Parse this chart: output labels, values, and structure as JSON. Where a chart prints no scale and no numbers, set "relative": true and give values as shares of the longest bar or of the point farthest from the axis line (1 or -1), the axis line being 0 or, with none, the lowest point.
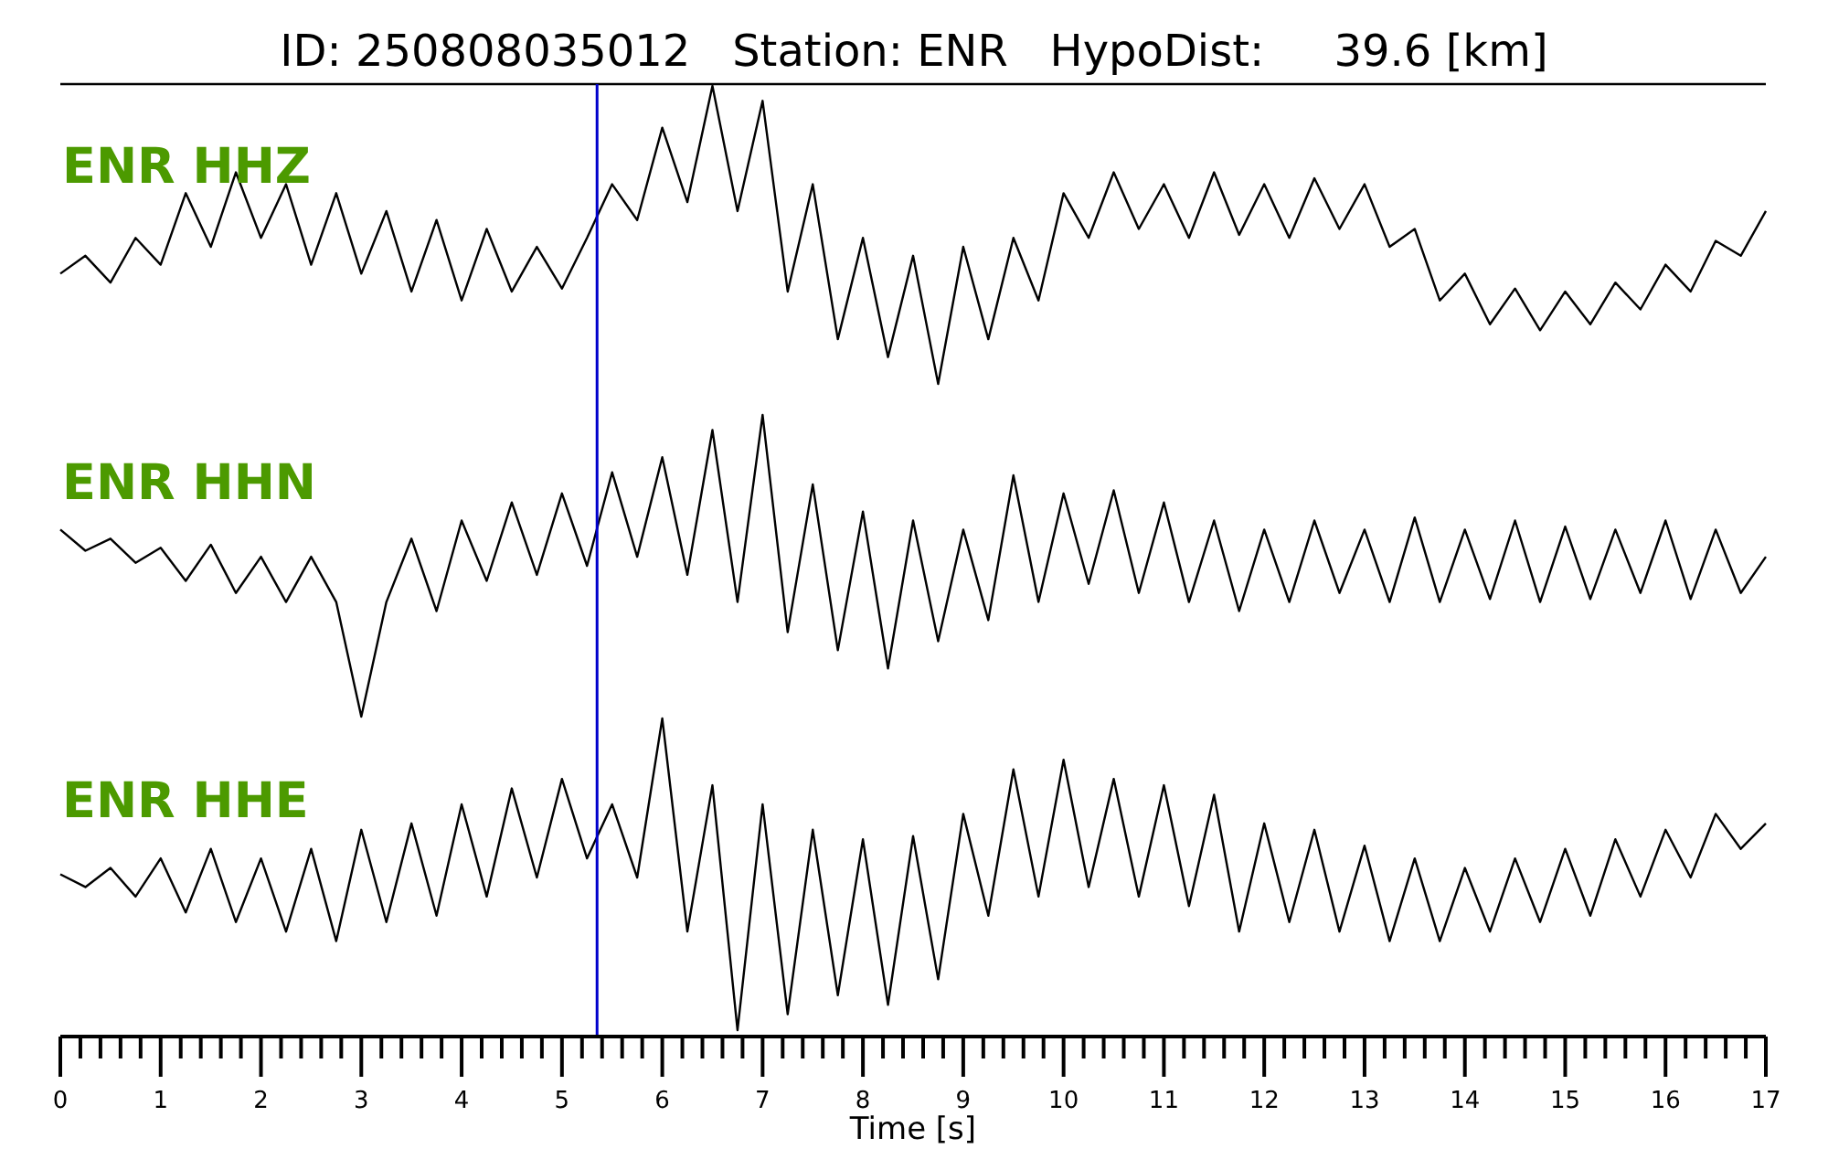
{
  "chart_data": [
    {
      "type": "line",
      "title": "ID: 250808035012   Station: ENR   HypoDist:     39.6 [km]",
      "relative": true,
      "tick_labels": false,
      "xlim": [
        0,
        17
      ],
      "x": [
        0,
        0.25,
        0.5,
        0.75,
        1,
        1.25,
        1.5,
        1.75,
        2,
        2.25,
        2.5,
        2.75,
        3,
        3.25,
        3.5,
        3.75,
        4,
        4.25,
        4.5,
        4.75,
        5,
        5.25,
        5.5,
        5.75,
        6,
        6.25,
        6.5,
        6.75,
        7,
        7.25,
        7.5,
        7.75,
        8,
        8.25,
        8.5,
        8.75,
        9,
        9.25,
        9.5,
        9.75,
        10,
        10.25,
        10.5,
        10.75,
        11,
        11.25,
        11.5,
        11.75,
        12,
        12.25,
        12.5,
        12.75,
        13,
        13.25,
        13.5,
        13.75,
        14,
        14.25,
        14.5,
        14.75,
        15,
        15.25,
        15.5,
        15.75,
        16,
        16.25,
        16.5,
        16.75,
        17
      ],
      "series": [
        {
          "name": "ENR HHZ",
          "color": "#000000",
          "values": [
            0.37,
            0.43,
            0.34,
            0.49,
            0.4,
            0.64,
            0.46,
            0.71,
            0.49,
            0.67,
            0.4,
            0.64,
            0.37,
            0.58,
            0.31,
            0.55,
            0.28,
            0.52,
            0.31,
            0.46,
            0.32,
            0.49,
            0.67,
            0.55,
            0.86,
            0.61,
            1,
            0.58,
            0.95,
            0.31,
            0.67,
            0.15,
            0.49,
            0.09,
            0.43,
            0,
            0.46,
            0.15,
            0.49,
            0.28,
            0.64,
            0.49,
            0.71,
            0.52,
            0.67,
            0.49,
            0.71,
            0.5,
            0.67,
            0.49,
            0.69,
            0.52,
            0.67,
            0.46,
            0.52,
            0.28,
            0.37,
            0.2,
            0.32,
            0.18,
            0.31,
            0.2,
            0.34,
            0.25,
            0.4,
            0.31,
            0.48,
            0.43,
            0.58
          ]
        }
      ],
      "ref_lines": [
        {
          "axis": "x",
          "value": 5.35,
          "color": "#0000cc"
        }
      ]
    },
    {
      "type": "line",
      "relative": true,
      "tick_labels": false,
      "xlim": [
        0,
        17
      ],
      "x": [
        0,
        0.25,
        0.5,
        0.75,
        1,
        1.25,
        1.5,
        1.75,
        2,
        2.25,
        2.5,
        2.75,
        3,
        3.25,
        3.5,
        3.75,
        4,
        4.25,
        4.5,
        4.75,
        5,
        5.25,
        5.5,
        5.75,
        6,
        6.25,
        6.5,
        6.75,
        7,
        7.25,
        7.5,
        7.75,
        8,
        8.25,
        8.5,
        8.75,
        9,
        9.25,
        9.5,
        9.75,
        10,
        10.25,
        10.5,
        10.75,
        11,
        11.25,
        11.5,
        11.75,
        12,
        12.25,
        12.5,
        12.75,
        13,
        13.25,
        13.5,
        13.75,
        14,
        14.25,
        14.5,
        14.75,
        15,
        15.25,
        15.5,
        15.75,
        16,
        16.25,
        16.5,
        16.75,
        17
      ],
      "series": [
        {
          "name": "ENR HHN",
          "color": "#000000",
          "values": [
            0.62,
            0.55,
            0.59,
            0.51,
            0.56,
            0.45,
            0.57,
            0.41,
            0.53,
            0.38,
            0.53,
            0.38,
            0,
            0.38,
            0.59,
            0.35,
            0.65,
            0.45,
            0.71,
            0.47,
            0.74,
            0.5,
            0.81,
            0.53,
            0.86,
            0.47,
            0.95,
            0.38,
            1,
            0.28,
            0.77,
            0.22,
            0.68,
            0.16,
            0.65,
            0.25,
            0.62,
            0.32,
            0.8,
            0.38,
            0.74,
            0.44,
            0.75,
            0.41,
            0.71,
            0.38,
            0.65,
            0.35,
            0.62,
            0.38,
            0.65,
            0.41,
            0.62,
            0.38,
            0.66,
            0.38,
            0.62,
            0.39,
            0.65,
            0.38,
            0.63,
            0.39,
            0.62,
            0.41,
            0.65,
            0.39,
            0.62,
            0.41,
            0.53
          ]
        }
      ],
      "ref_lines": [
        {
          "axis": "x",
          "value": 5.35,
          "color": "#0000cc"
        }
      ]
    },
    {
      "type": "line",
      "relative": true,
      "tick_labels": "x",
      "xlim": [
        0,
        17
      ],
      "xlabel": "Time [s]",
      "xticks": [
        0,
        {
          "value": 0.2,
          "label": null
        },
        {
          "value": 0.4,
          "label": null
        },
        {
          "value": 0.6,
          "label": null
        },
        {
          "value": 0.8,
          "label": null
        },
        1,
        {
          "value": 1.2,
          "label": null
        },
        {
          "value": 1.4,
          "label": null
        },
        {
          "value": 1.6,
          "label": null
        },
        {
          "value": 1.8,
          "label": null
        },
        2,
        {
          "value": 2.2,
          "label": null
        },
        {
          "value": 2.4,
          "label": null
        },
        {
          "value": 2.6,
          "label": null
        },
        {
          "value": 2.8,
          "label": null
        },
        3,
        {
          "value": 3.2,
          "label": null
        },
        {
          "value": 3.4,
          "label": null
        },
        {
          "value": 3.6,
          "label": null
        },
        {
          "value": 3.8,
          "label": null
        },
        4,
        {
          "value": 4.2,
          "label": null
        },
        {
          "value": 4.4,
          "label": null
        },
        {
          "value": 4.6,
          "label": null
        },
        {
          "value": 4.8,
          "label": null
        },
        5,
        {
          "value": 5.2,
          "label": null
        },
        {
          "value": 5.4,
          "label": null
        },
        {
          "value": 5.6,
          "label": null
        },
        {
          "value": 5.8,
          "label": null
        },
        6,
        {
          "value": 6.2,
          "label": null
        },
        {
          "value": 6.4,
          "label": null
        },
        {
          "value": 6.6,
          "label": null
        },
        {
          "value": 6.8,
          "label": null
        },
        7,
        {
          "value": 7.2,
          "label": null
        },
        {
          "value": 7.4,
          "label": null
        },
        {
          "value": 7.6,
          "label": null
        },
        {
          "value": 7.8,
          "label": null
        },
        8,
        {
          "value": 8.2,
          "label": null
        },
        {
          "value": 8.4,
          "label": null
        },
        {
          "value": 8.6,
          "label": null
        },
        {
          "value": 8.8,
          "label": null
        },
        9,
        {
          "value": 9.2,
          "label": null
        },
        {
          "value": 9.4,
          "label": null
        },
        {
          "value": 9.6,
          "label": null
        },
        {
          "value": 9.8,
          "label": null
        },
        10,
        {
          "value": 10.2,
          "label": null
        },
        {
          "value": 10.4,
          "label": null
        },
        {
          "value": 10.6,
          "label": null
        },
        {
          "value": 10.8,
          "label": null
        },
        11,
        {
          "value": 11.2,
          "label": null
        },
        {
          "value": 11.4,
          "label": null
        },
        {
          "value": 11.6,
          "label": null
        },
        {
          "value": 11.8,
          "label": null
        },
        12,
        {
          "value": 12.2,
          "label": null
        },
        {
          "value": 12.4,
          "label": null
        },
        {
          "value": 12.6,
          "label": null
        },
        {
          "value": 12.8,
          "label": null
        },
        13,
        {
          "value": 13.2,
          "label": null
        },
        {
          "value": 13.4,
          "label": null
        },
        {
          "value": 13.6,
          "label": null
        },
        {
          "value": 13.8,
          "label": null
        },
        14,
        {
          "value": 14.2,
          "label": null
        },
        {
          "value": 14.4,
          "label": null
        },
        {
          "value": 14.6,
          "label": null
        },
        {
          "value": 14.8,
          "label": null
        },
        15,
        {
          "value": 15.2,
          "label": null
        },
        {
          "value": 15.4,
          "label": null
        },
        {
          "value": 15.6,
          "label": null
        },
        {
          "value": 15.8,
          "label": null
        },
        16,
        {
          "value": 16.2,
          "label": null
        },
        {
          "value": 16.4,
          "label": null
        },
        {
          "value": 16.6,
          "label": null
        },
        {
          "value": 16.8,
          "label": null
        },
        17
      ],
      "x": [
        0,
        0.25,
        0.5,
        0.75,
        1,
        1.25,
        1.5,
        1.75,
        2,
        2.25,
        2.5,
        2.75,
        3,
        3.25,
        3.5,
        3.75,
        4,
        4.25,
        4.5,
        4.75,
        5,
        5.25,
        5.5,
        5.75,
        6,
        6.25,
        6.5,
        6.75,
        7,
        7.25,
        7.5,
        7.75,
        8,
        8.25,
        8.5,
        8.75,
        9,
        9.25,
        9.5,
        9.75,
        10,
        10.25,
        10.5,
        10.75,
        11,
        11.25,
        11.5,
        11.75,
        12,
        12.25,
        12.5,
        12.75,
        13,
        13.25,
        13.5,
        13.75,
        14,
        14.25,
        14.5,
        14.75,
        15,
        15.25,
        15.5,
        15.75,
        16,
        16.25,
        16.5,
        16.75,
        17
      ],
      "series": [
        {
          "name": "ENR HHE",
          "color": "#000000",
          "values": [
            0.51,
            0.47,
            0.53,
            0.44,
            0.56,
            0.39,
            0.59,
            0.36,
            0.56,
            0.33,
            0.59,
            0.3,
            0.65,
            0.36,
            0.67,
            0.38,
            0.73,
            0.44,
            0.78,
            0.5,
            0.81,
            0.56,
            0.73,
            0.5,
            1,
            0.33,
            0.79,
            0.02,
            0.73,
            0.07,
            0.65,
            0.13,
            0.62,
            0.1,
            0.63,
            0.18,
            0.7,
            0.38,
            0.84,
            0.44,
            0.87,
            0.47,
            0.81,
            0.44,
            0.79,
            0.41,
            0.76,
            0.33,
            0.67,
            0.36,
            0.65,
            0.33,
            0.6,
            0.3,
            0.56,
            0.3,
            0.53,
            0.33,
            0.56,
            0.36,
            0.59,
            0.38,
            0.62,
            0.44,
            0.65,
            0.5,
            0.7,
            0.59,
            0.67
          ]
        }
      ],
      "ref_lines": [
        {
          "axis": "x",
          "value": 5.35,
          "color": "#0000cc"
        }
      ]
    }
  ]
}
